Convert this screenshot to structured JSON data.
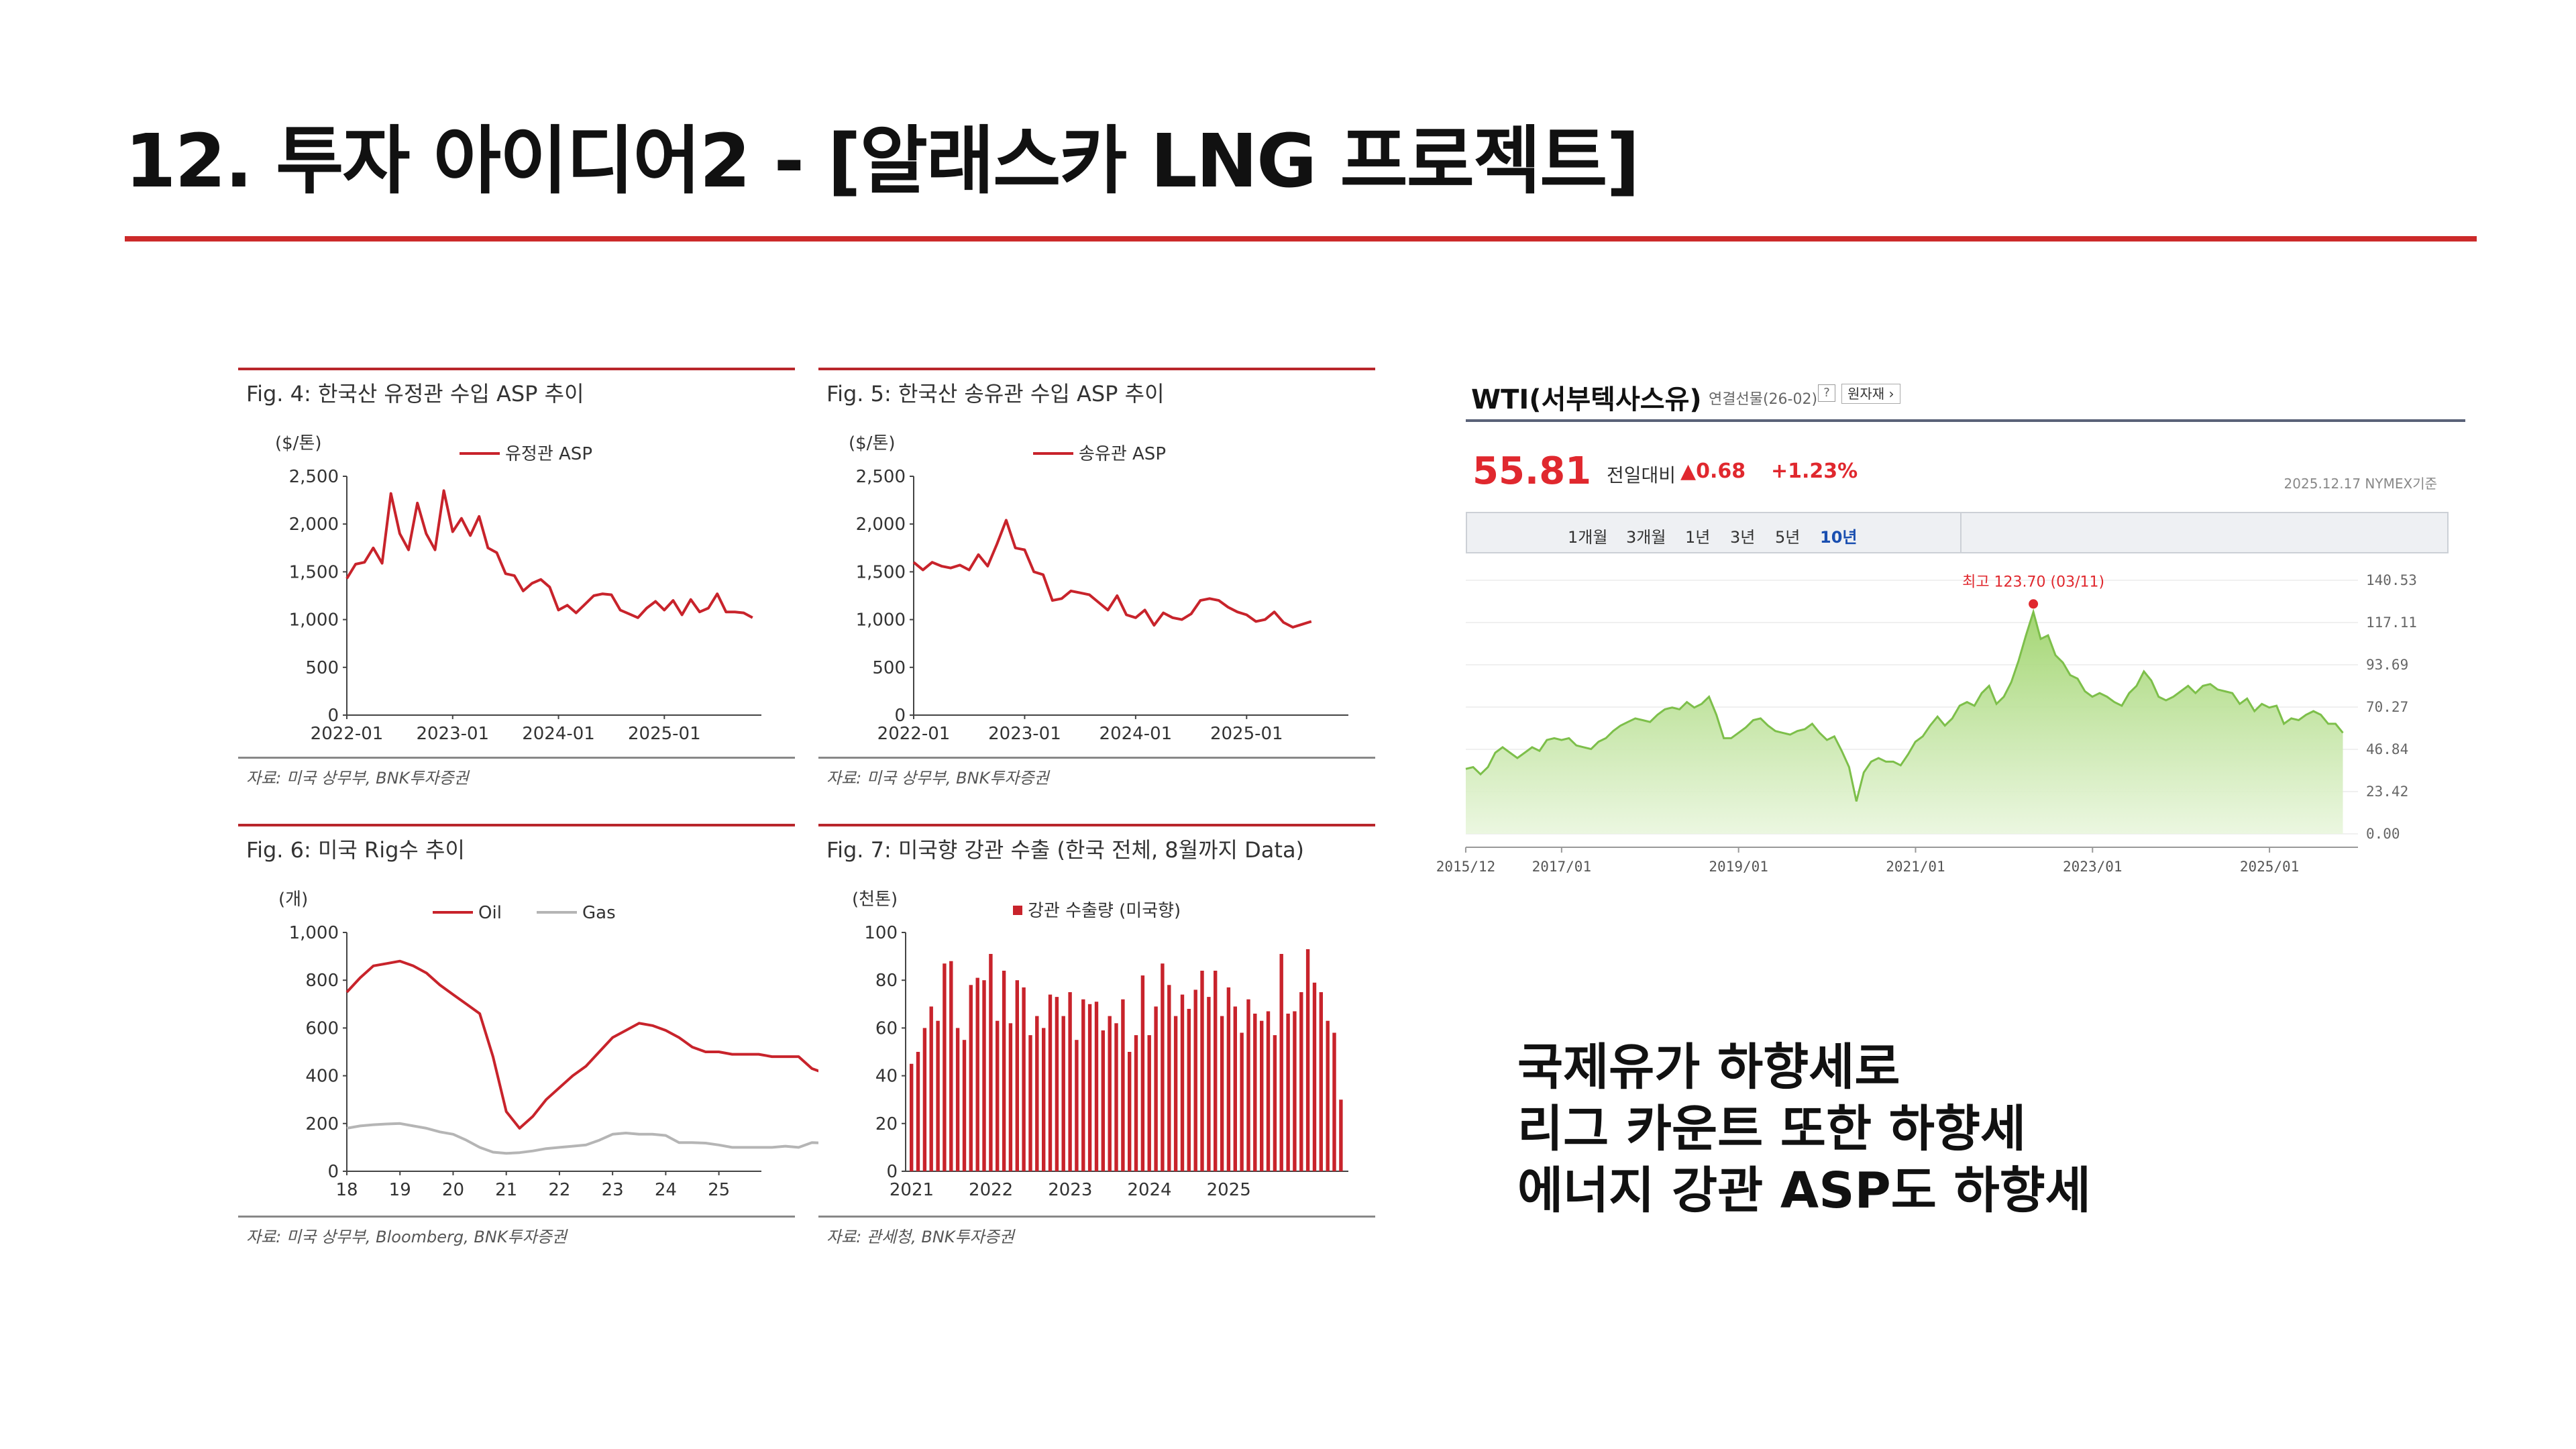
{
  "title": "12. 투자 아이디어2 - [알래스카 LNG 프로젝트]",
  "colors": {
    "accent": "#cc2a2a",
    "series_red": "#c8232b",
    "series_gray": "#b5b5b5",
    "wti_green": "#7dbf4a"
  },
  "figures": {
    "fig4": {
      "caption": "Fig. 4: 한국산 유정관 수입 ASP 추이",
      "unit": "($/톤)",
      "legend": "유정관 ASP",
      "source": "자료: 미국 상무부, BNK투자증권"
    },
    "fig5": {
      "caption": "Fig. 5: 한국산 송유관 수입 ASP 추이",
      "unit": "($/톤)",
      "legend": "송유관 ASP",
      "source": "자료: 미국 상무부, BNK투자증권"
    },
    "fig6": {
      "caption": "Fig. 6: 미국 Rig수 추이",
      "unit": "(개)",
      "legend_oil": "Oil",
      "legend_gas": "Gas",
      "source": "자료: 미국 상무부, Bloomberg, BNK투자증권"
    },
    "fig7": {
      "caption": "Fig. 7: 미국향 강관 수출 (한국 전체, 8월까지 Data)",
      "unit": "(천톤)",
      "legend": "강관 수출량 (미국향)",
      "source": "자료: 관세청, BNK투자증권"
    }
  },
  "wti": {
    "name": "WTI(서부텍사스유)",
    "sub": "연결선물(26-02)",
    "help": "?",
    "original": "원자재 ›",
    "price": "55.81",
    "change_label": "전일대비",
    "change_abs": "▲0.68",
    "change_pct": "+1.23%",
    "timestamp": "2025.12.17  NYMEX기준",
    "tabs": [
      "1개월",
      "3개월",
      "1년",
      "3년",
      "5년",
      "10년"
    ],
    "active_tab": "10년",
    "max_label": "최고 123.70 (03/11)"
  },
  "summary": [
    "국제유가 하향세로",
    "리그 카운트 또한 하향세",
    "에너지 강관 ASP도 하향세"
  ],
  "chart_data": [
    {
      "id": "fig4",
      "type": "line",
      "title": "Fig. 4: 한국산 유정관 수입 ASP 추이",
      "ylabel": "($/톤)",
      "ylim": [
        0,
        2500
      ],
      "yticks": [
        "0",
        "500",
        "1,000",
        "1,500",
        "2,000",
        "2,500"
      ],
      "xticks": [
        "2022-01",
        "2023-01",
        "2024-01",
        "2025-01"
      ],
      "x_range": [
        2022.0,
        2025.917
      ],
      "series": [
        {
          "name": "유정관 ASP",
          "x_start": 2022.0,
          "x_step": 0.08333,
          "values": [
            1430,
            1580,
            1600,
            1750,
            1590,
            2320,
            1900,
            1730,
            2220,
            1900,
            1730,
            2350,
            1920,
            2060,
            1880,
            2080,
            1750,
            1700,
            1480,
            1460,
            1300,
            1380,
            1420,
            1340,
            1100,
            1150,
            1070,
            1160,
            1250,
            1270,
            1260,
            1100,
            1060,
            1020,
            1120,
            1190,
            1100,
            1200,
            1050,
            1210,
            1080,
            1120,
            1270,
            1080,
            1080,
            1070,
            1020
          ]
        }
      ],
      "grid": false,
      "legend": "top-center"
    },
    {
      "id": "fig5",
      "type": "line",
      "title": "Fig. 5: 한국산 송유관 수입 ASP 추이",
      "ylabel": "($/톤)",
      "ylim": [
        0,
        2500
      ],
      "yticks": [
        "0",
        "500",
        "1,000",
        "1,500",
        "2,000",
        "2,500"
      ],
      "xticks": [
        "2022-01",
        "2023-01",
        "2024-01",
        "2025-01"
      ],
      "x_range": [
        2022.0,
        2025.917
      ],
      "series": [
        {
          "name": "송유관 ASP",
          "x_start": 2022.0,
          "x_step": 0.08333,
          "values": [
            1600,
            1520,
            1600,
            1560,
            1540,
            1570,
            1520,
            1680,
            1560,
            1790,
            2040,
            1750,
            1730,
            1500,
            1470,
            1200,
            1220,
            1300,
            1280,
            1260,
            1180,
            1100,
            1250,
            1050,
            1020,
            1100,
            940,
            1070,
            1020,
            1000,
            1060,
            1200,
            1220,
            1200,
            1130,
            1080,
            1050,
            980,
            1000,
            1080,
            970,
            920,
            950,
            980
          ]
        }
      ],
      "grid": false,
      "legend": "top-center"
    },
    {
      "id": "fig6",
      "type": "line",
      "title": "Fig. 6: 미국 Rig수 추이",
      "ylabel": "(개)",
      "ylim": [
        0,
        1000
      ],
      "yticks": [
        "0",
        "200",
        "400",
        "600",
        "800",
        "1,000"
      ],
      "xticks": [
        "18",
        "19",
        "20",
        "21",
        "22",
        "23",
        "24",
        "25"
      ],
      "x_range": [
        2018.0,
        2025.8
      ],
      "series": [
        {
          "name": "Oil",
          "x_start": 2018.0,
          "x_step": 0.25,
          "values": [
            750,
            810,
            860,
            870,
            880,
            860,
            830,
            780,
            740,
            700,
            660,
            480,
            250,
            180,
            230,
            300,
            350,
            400,
            440,
            500,
            560,
            590,
            620,
            610,
            590,
            560,
            520,
            500,
            500,
            490,
            490,
            490,
            480,
            480,
            480,
            430,
            410,
            420
          ]
        },
        {
          "name": "Gas",
          "x_start": 2018.0,
          "x_step": 0.25,
          "values": [
            180,
            190,
            195,
            198,
            200,
            190,
            180,
            165,
            155,
            130,
            100,
            80,
            75,
            78,
            85,
            95,
            100,
            105,
            110,
            130,
            155,
            160,
            155,
            155,
            150,
            120,
            120,
            118,
            110,
            100,
            100,
            100,
            100,
            105,
            100,
            120,
            118,
            120
          ]
        }
      ],
      "grid": false,
      "legend": "top-center"
    },
    {
      "id": "fig7",
      "type": "bar",
      "title": "Fig. 7: 미국향 강관 수출 (한국 전체, 8월까지 Data)",
      "ylabel": "(천톤)",
      "ylim": [
        0,
        100
      ],
      "yticks": [
        "0",
        "20",
        "40",
        "60",
        "80",
        "100"
      ],
      "xticks": [
        "2021",
        "2022",
        "2023",
        "2024",
        "2025"
      ],
      "series": [
        {
          "name": "강관 수출량 (미국향)",
          "x_start": 2021.0,
          "x_step": 0.08333,
          "values": [
            45,
            50,
            60,
            69,
            63,
            87,
            88,
            60,
            55,
            78,
            81,
            80,
            91,
            63,
            84,
            62,
            80,
            77,
            57,
            65,
            60,
            74,
            73,
            65,
            75,
            55,
            72,
            70,
            71,
            59,
            65,
            62,
            72,
            50,
            57,
            82,
            57,
            69,
            87,
            78,
            65,
            74,
            68,
            76,
            84,
            73,
            84,
            65,
            77,
            69,
            58,
            72,
            66,
            63,
            67,
            57,
            91,
            66,
            67,
            75,
            93,
            79,
            75,
            63,
            58,
            30
          ]
        }
      ],
      "grid": false,
      "legend": "top-center"
    },
    {
      "id": "wti",
      "type": "area",
      "title": "WTI(서부텍사스유)",
      "ylim": [
        0,
        140.53
      ],
      "yticks": [
        "0.00",
        "23.42",
        "46.84",
        "70.27",
        "93.69",
        "117.11",
        "140.53"
      ],
      "xticks": [
        "2015/12",
        "2017/01",
        "2019/01",
        "2021/01",
        "2023/01",
        "2025/01"
      ],
      "x_range": [
        2015.917,
        2026.0
      ],
      "series": [
        {
          "name": "WTI",
          "x_start": 2015.917,
          "x_step": 0.0833,
          "values": [
            36,
            37,
            33,
            37,
            45,
            48,
            45,
            42,
            45,
            48,
            46,
            52,
            53,
            52,
            53,
            49,
            48,
            47,
            51,
            53,
            57,
            60,
            62,
            64,
            63,
            62,
            66,
            69,
            70,
            69,
            73,
            70,
            72,
            76,
            66,
            53,
            53,
            56,
            59,
            63,
            64,
            60,
            57,
            56,
            55,
            57,
            58,
            61,
            56,
            52,
            54,
            46,
            37,
            18,
            34,
            40,
            42,
            40,
            40,
            38,
            44,
            51,
            54,
            60,
            65,
            60,
            64,
            71,
            73,
            71,
            78,
            82,
            72,
            76,
            84,
            96,
            110,
            123,
            108,
            110,
            99,
            95,
            88,
            86,
            79,
            76,
            78,
            76,
            73,
            71,
            78,
            82,
            90,
            85,
            76,
            74,
            76,
            79,
            82,
            78,
            82,
            83,
            80,
            79,
            78,
            72,
            75,
            68,
            72,
            70,
            71,
            61,
            64,
            63,
            66,
            68,
            66,
            61,
            61,
            56
          ]
        }
      ],
      "max_point": {
        "value": 123.7,
        "label": "최고 123.70 (03/11)"
      },
      "grid": true,
      "legend": "none"
    }
  ]
}
